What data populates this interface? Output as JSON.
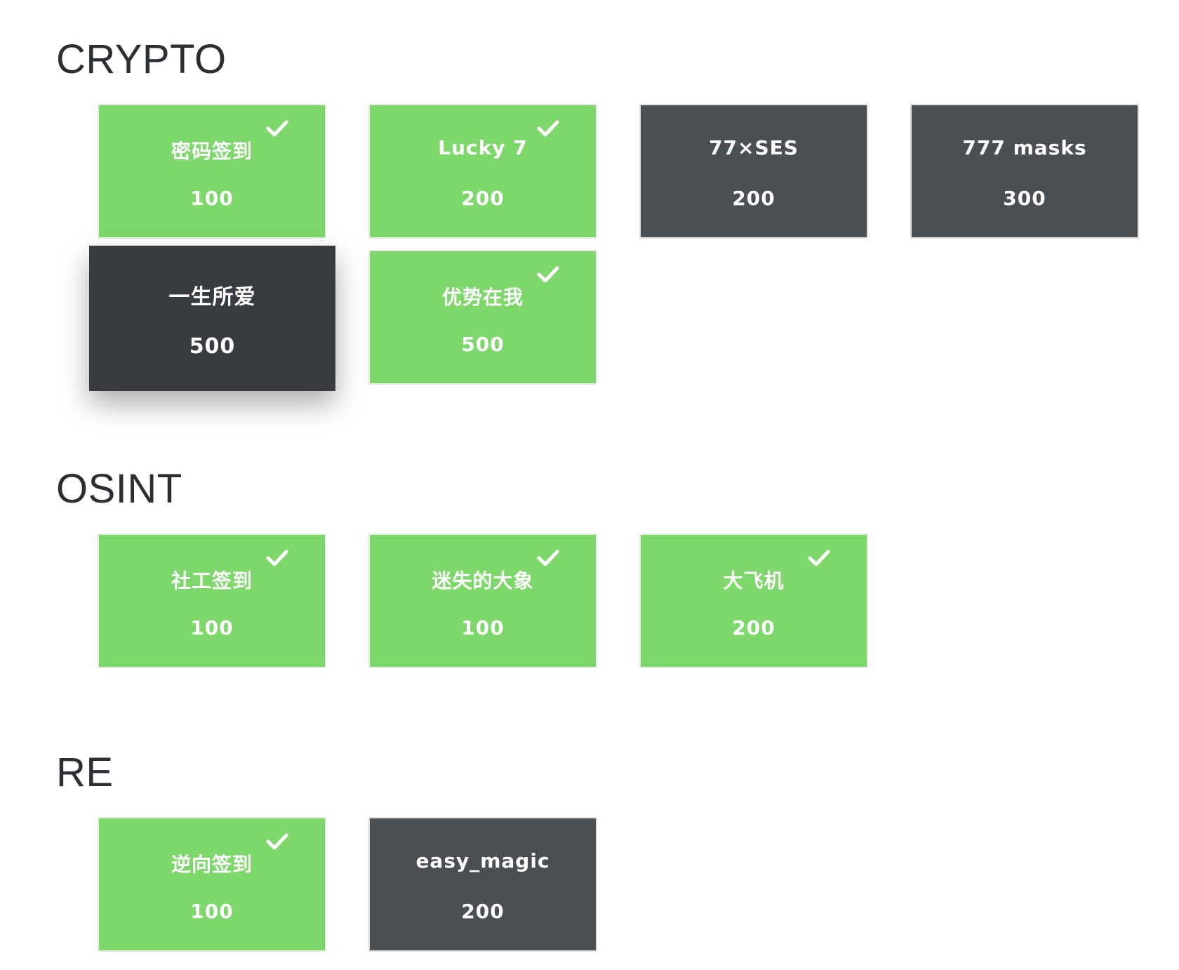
{
  "categories": [
    {
      "title": "CRYPTO",
      "challenges": [
        {
          "name": "密码签到",
          "value": "100",
          "solved": true
        },
        {
          "name": "Lucky 7",
          "value": "200",
          "solved": true
        },
        {
          "name": "77×SES",
          "value": "200",
          "solved": false
        },
        {
          "name": "777 masks",
          "value": "300",
          "solved": false
        },
        {
          "name": "一生所爱",
          "value": "500",
          "solved": false
        },
        {
          "name": "优势在我",
          "value": "500",
          "solved": true
        }
      ]
    },
    {
      "title": "OSINT",
      "challenges": [
        {
          "name": "社工签到",
          "value": "100",
          "solved": true
        },
        {
          "name": "迷失的大象",
          "value": "100",
          "solved": true
        },
        {
          "name": "大飞机",
          "value": "200",
          "solved": true
        }
      ]
    },
    {
      "title": "RE",
      "challenges": [
        {
          "name": "逆向签到",
          "value": "100",
          "solved": true
        },
        {
          "name": "easy_magic",
          "value": "200",
          "solved": false
        }
      ]
    }
  ],
  "colors": {
    "solved": "#7dd76b",
    "unsolved": "#4b4e53",
    "hovered": "#383b40",
    "heading": "#2b2e33"
  },
  "icons": {
    "solved_marker": "check-icon"
  }
}
